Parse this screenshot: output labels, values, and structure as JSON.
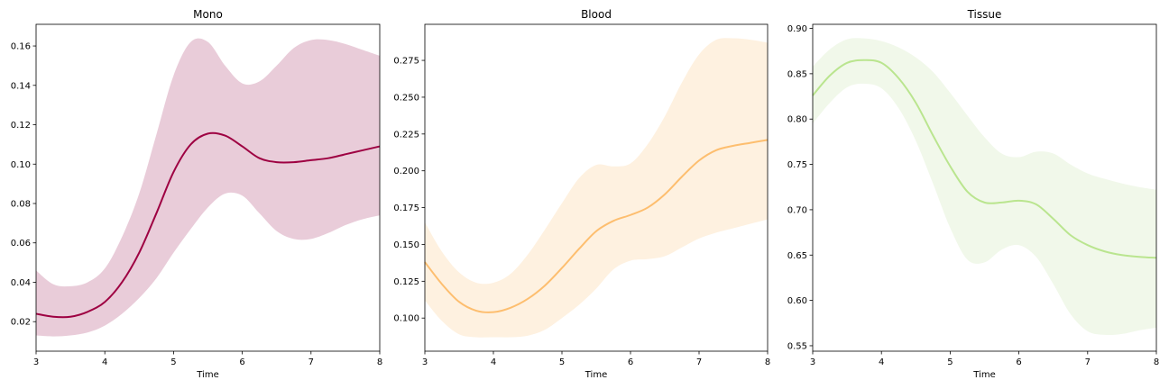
{
  "chart_data": [
    {
      "type": "line",
      "title": "Mono",
      "xlabel": "Time",
      "ylabel": "",
      "xlim": [
        3,
        8
      ],
      "ylim": [
        0.005,
        0.171
      ],
      "xticks": [
        "3",
        "4",
        "5",
        "6",
        "7",
        "8"
      ],
      "yticks": [
        "0.02",
        "0.04",
        "0.06",
        "0.08",
        "0.10",
        "0.12",
        "0.14",
        "0.16"
      ],
      "color": "#9e0142",
      "band_color": "#e9ccd9",
      "x": [
        3,
        3.25,
        3.5,
        3.75,
        4,
        4.25,
        4.5,
        4.75,
        5,
        5.25,
        5.5,
        5.75,
        6,
        6.25,
        6.5,
        6.75,
        7,
        7.25,
        7.5,
        7.75,
        8
      ],
      "mean": [
        0.024,
        0.0225,
        0.0225,
        0.025,
        0.03,
        0.04,
        0.055,
        0.075,
        0.096,
        0.11,
        0.1155,
        0.1145,
        0.109,
        0.103,
        0.101,
        0.101,
        0.102,
        0.103,
        0.105,
        0.107,
        0.109
      ],
      "lower": [
        0.013,
        0.0125,
        0.013,
        0.0145,
        0.018,
        0.024,
        0.032,
        0.042,
        0.055,
        0.067,
        0.078,
        0.085,
        0.084,
        0.075,
        0.066,
        0.062,
        0.062,
        0.065,
        0.069,
        0.072,
        0.074
      ],
      "upper": [
        0.046,
        0.039,
        0.038,
        0.04,
        0.047,
        0.063,
        0.085,
        0.115,
        0.145,
        0.162,
        0.162,
        0.15,
        0.141,
        0.142,
        0.15,
        0.159,
        0.163,
        0.163,
        0.161,
        0.158,
        0.155
      ]
    },
    {
      "type": "line",
      "title": "Blood",
      "xlabel": "Time",
      "ylabel": "",
      "xlim": [
        3,
        8
      ],
      "ylim": [
        0.0775,
        0.2995
      ],
      "xticks": [
        "3",
        "4",
        "5",
        "6",
        "7",
        "8"
      ],
      "yticks": [
        "0.100",
        "0.125",
        "0.150",
        "0.175",
        "0.200",
        "0.225",
        "0.250",
        "0.275"
      ],
      "color": "#fdbe6f",
      "band_color": "#fef1e0",
      "x": [
        3,
        3.25,
        3.5,
        3.75,
        4,
        4.25,
        4.5,
        4.75,
        5,
        5.25,
        5.5,
        5.75,
        6,
        6.25,
        6.5,
        6.75,
        7,
        7.25,
        7.5,
        7.75,
        8
      ],
      "mean": [
        0.138,
        0.123,
        0.111,
        0.105,
        0.104,
        0.107,
        0.113,
        0.122,
        0.134,
        0.147,
        0.159,
        0.166,
        0.17,
        0.175,
        0.184,
        0.196,
        0.207,
        0.214,
        0.217,
        0.219,
        0.221
      ],
      "lower": [
        0.112,
        0.098,
        0.089,
        0.087,
        0.087,
        0.087,
        0.088,
        0.092,
        0.1,
        0.109,
        0.12,
        0.133,
        0.139,
        0.14,
        0.142,
        0.148,
        0.154,
        0.158,
        0.161,
        0.164,
        0.167
      ],
      "upper": [
        0.165,
        0.145,
        0.131,
        0.124,
        0.124,
        0.13,
        0.143,
        0.16,
        0.178,
        0.195,
        0.204,
        0.203,
        0.205,
        0.218,
        0.237,
        0.26,
        0.279,
        0.289,
        0.29,
        0.289,
        0.287
      ]
    },
    {
      "type": "line",
      "title": "Tissue",
      "xlabel": "Time",
      "ylabel": "",
      "xlim": [
        3,
        8
      ],
      "ylim": [
        0.544,
        0.9045
      ],
      "xticks": [
        "3",
        "4",
        "5",
        "6",
        "7",
        "8"
      ],
      "yticks": [
        "0.55",
        "0.60",
        "0.65",
        "0.70",
        "0.75",
        "0.80",
        "0.85",
        "0.90"
      ],
      "color": "#bae58f",
      "band_color": "#f1f8ea",
      "x": [
        3,
        3.25,
        3.5,
        3.75,
        4,
        4.25,
        4.5,
        4.75,
        5,
        5.25,
        5.5,
        5.75,
        6,
        6.25,
        6.5,
        6.75,
        7,
        7.25,
        7.5,
        7.75,
        8
      ],
      "mean": [
        0.826,
        0.848,
        0.862,
        0.865,
        0.862,
        0.845,
        0.818,
        0.782,
        0.748,
        0.72,
        0.708,
        0.708,
        0.71,
        0.706,
        0.69,
        0.672,
        0.661,
        0.654,
        0.65,
        0.648,
        0.647
      ],
      "lower": [
        0.795,
        0.818,
        0.835,
        0.839,
        0.834,
        0.812,
        0.776,
        0.729,
        0.68,
        0.645,
        0.642,
        0.656,
        0.661,
        0.648,
        0.618,
        0.585,
        0.566,
        0.562,
        0.563,
        0.567,
        0.57
      ],
      "upper": [
        0.858,
        0.877,
        0.888,
        0.889,
        0.886,
        0.879,
        0.868,
        0.852,
        0.829,
        0.804,
        0.78,
        0.762,
        0.758,
        0.764,
        0.762,
        0.75,
        0.74,
        0.734,
        0.729,
        0.725,
        0.722
      ]
    }
  ]
}
